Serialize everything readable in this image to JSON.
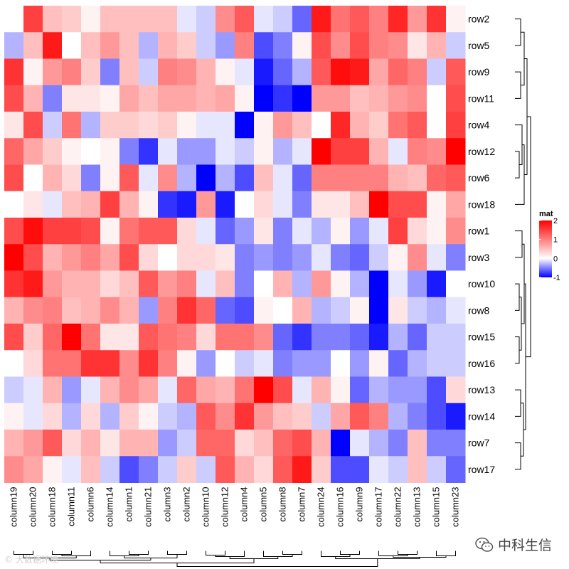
{
  "chart_data": {
    "type": "heatmap",
    "rows": [
      "row2",
      "row5",
      "row9",
      "row11",
      "row4",
      "row12",
      "row6",
      "row18",
      "row1",
      "row3",
      "row10",
      "row8",
      "row15",
      "row16",
      "row13",
      "row14",
      "row7",
      "row17"
    ],
    "columns": [
      "column19",
      "column20",
      "column18",
      "column11",
      "column6",
      "column14",
      "column1",
      "column21",
      "column3",
      "column2",
      "column10",
      "column12",
      "column4",
      "column5",
      "column8",
      "column7",
      "column24",
      "column16",
      "column9",
      "column17",
      "column22",
      "column13",
      "column15",
      "column23"
    ],
    "values": [
      [
        0.0,
        1.5,
        0.5,
        0.4,
        0.1,
        0.5,
        0.5,
        0.5,
        0.5,
        -0.1,
        -0.2,
        0.9,
        1.3,
        -0.1,
        -0.2,
        -0.6,
        1.8,
        1.1,
        1.3,
        1.0,
        1.7,
        0.8,
        1.6,
        0.1
      ],
      [
        -0.3,
        0.5,
        1.8,
        0.0,
        0.5,
        0.8,
        0.5,
        -0.3,
        0.6,
        0.4,
        -0.2,
        -0.4,
        1.0,
        -0.7,
        -0.5,
        0.1,
        1.4,
        0.9,
        1.4,
        1.0,
        0.9,
        0.2,
        0.6,
        -0.2
      ],
      [
        1.6,
        0.1,
        0.8,
        1.0,
        0.4,
        -0.5,
        0.5,
        -0.2,
        1.0,
        0.9,
        0.6,
        0.1,
        -0.1,
        -0.9,
        -0.6,
        -0.3,
        1.3,
        1.9,
        1.8,
        0.7,
        1.2,
        1.0,
        -0.2,
        1.3
      ],
      [
        1.4,
        0.6,
        -0.5,
        0.2,
        0.2,
        0.1,
        0.7,
        0.5,
        0.7,
        0.7,
        0.6,
        0.7,
        0.1,
        -1.0,
        -0.8,
        -1.0,
        0.8,
        0.8,
        0.5,
        0.6,
        0.8,
        0.9,
        0.0,
        1.4
      ],
      [
        0.2,
        1.4,
        -0.2,
        1.1,
        -0.3,
        0.4,
        0.4,
        0.3,
        0.4,
        0.1,
        -0.1,
        -0.1,
        -1.0,
        0.1,
        0.8,
        0.5,
        0.0,
        1.7,
        0.6,
        0.4,
        1.1,
        1.3,
        0.0,
        1.5
      ],
      [
        1.2,
        0.7,
        0.4,
        0.1,
        0.0,
        0.1,
        -0.5,
        -0.8,
        -0.1,
        -0.4,
        -0.4,
        -0.1,
        -0.2,
        0.1,
        -0.3,
        -0.1,
        2.0,
        1.5,
        1.5,
        0.6,
        -0.1,
        1.0,
        0.9,
        2.0
      ],
      [
        1.4,
        0.0,
        0.6,
        0.3,
        -0.5,
        0.1,
        1.3,
        -0.1,
        0.9,
        -0.3,
        -1.0,
        -0.3,
        -0.7,
        0.5,
        -0.1,
        -0.6,
        1.0,
        1.0,
        1.0,
        1.0,
        0.6,
        0.5,
        1.2,
        1.3
      ],
      [
        0.0,
        0.2,
        -0.1,
        0.5,
        0.6,
        1.5,
        0.6,
        0.1,
        -0.8,
        -0.9,
        0.8,
        -0.9,
        0.0,
        0.3,
        -0.1,
        -0.5,
        0.2,
        0.2,
        0.5,
        2.0,
        1.4,
        1.4,
        0.1,
        0.7
      ],
      [
        1.4,
        1.9,
        1.5,
        1.5,
        1.4,
        0.1,
        1.1,
        1.3,
        1.3,
        0.3,
        -0.1,
        -0.6,
        -0.4,
        0.2,
        -0.5,
        -0.1,
        -0.3,
        0.1,
        -0.4,
        -0.1,
        1.5,
        0.3,
        0.1,
        0.9
      ],
      [
        2.0,
        1.4,
        0.6,
        0.8,
        1.0,
        0.7,
        1.4,
        0.3,
        0.0,
        0.3,
        0.3,
        0.2,
        -0.5,
        -0.4,
        -0.5,
        -0.4,
        -0.1,
        -0.5,
        -0.6,
        -0.2,
        0.1,
        0.9,
        -0.1,
        -0.5
      ],
      [
        1.6,
        1.8,
        0.8,
        0.6,
        0.6,
        0.3,
        0.5,
        1.3,
        0.8,
        1.0,
        -0.1,
        0.5,
        -0.5,
        0.0,
        0.6,
        -0.3,
        0.8,
        0.1,
        -0.3,
        -1.0,
        -0.1,
        -0.4,
        -0.9,
        0.0
      ],
      [
        0.6,
        0.9,
        1.0,
        0.5,
        0.6,
        0.9,
        0.6,
        -0.4,
        1.0,
        1.6,
        1.2,
        -0.6,
        -0.7,
        0.1,
        0.0,
        0.6,
        -0.3,
        -0.2,
        0.1,
        -1.0,
        0.2,
        -0.2,
        -0.3,
        -0.1
      ],
      [
        1.4,
        0.4,
        1.2,
        2.0,
        1.1,
        0.2,
        0.2,
        1.3,
        1.1,
        1.0,
        0.3,
        1.1,
        1.1,
        0.9,
        -0.6,
        -0.8,
        -0.5,
        -0.5,
        -0.6,
        -0.9,
        -0.3,
        -0.6,
        -0.2,
        -0.2
      ],
      [
        0.0,
        0.3,
        1.1,
        1.1,
        1.6,
        1.6,
        0.9,
        1.6,
        1.0,
        0.1,
        -0.4,
        0.0,
        -0.2,
        -0.1,
        -0.5,
        -0.4,
        -0.4,
        0.0,
        -0.4,
        0.1,
        -0.6,
        -0.3,
        -0.2,
        -0.2
      ],
      [
        -0.2,
        -0.1,
        0.6,
        -0.4,
        -0.1,
        0.6,
        0.9,
        0.7,
        -0.1,
        1.2,
        0.7,
        0.6,
        1.1,
        2.0,
        1.4,
        -0.1,
        0.6,
        0.1,
        -0.6,
        -0.3,
        -0.4,
        -0.4,
        -0.7,
        0.3
      ],
      [
        0.1,
        -0.1,
        0.3,
        -0.3,
        0.3,
        -0.3,
        0.4,
        0.1,
        -0.2,
        -0.3,
        1.3,
        0.9,
        1.6,
        0.8,
        0.5,
        0.4,
        -0.2,
        0.7,
        1.3,
        1.0,
        -0.3,
        -0.5,
        -0.7,
        -0.9
      ],
      [
        0.6,
        0.8,
        1.3,
        0.3,
        0.6,
        0.2,
        0.6,
        0.6,
        -0.4,
        -0.2,
        1.2,
        1.2,
        0.3,
        0.5,
        1.2,
        1.4,
        0.6,
        -1.0,
        -0.1,
        -0.3,
        -0.5,
        0.5,
        -0.5,
        -0.5
      ],
      [
        0.9,
        0.7,
        0.1,
        -0.1,
        0.5,
        -0.2,
        -0.7,
        -0.5,
        -0.2,
        0.4,
        -0.2,
        1.3,
        0.6,
        0.3,
        1.3,
        1.8,
        0.4,
        -0.7,
        -0.7,
        -0.1,
        -0.2,
        0.5,
        -0.2,
        -0.6
      ]
    ],
    "legend": {
      "title": "mat",
      "ticks": [
        2,
        1,
        0,
        -1
      ],
      "tick_labels": [
        "2",
        "1",
        "0",
        "-1"
      ],
      "range": [
        -1,
        2
      ],
      "colors": {
        "low": "#0000ff",
        "mid": "#ffffff",
        "high": "#ff0000"
      },
      "placement": "right"
    }
  },
  "watermarks": {
    "left": "© 大数据环境",
    "right": "中科生信",
    "right_icon": "wechat-icon"
  }
}
